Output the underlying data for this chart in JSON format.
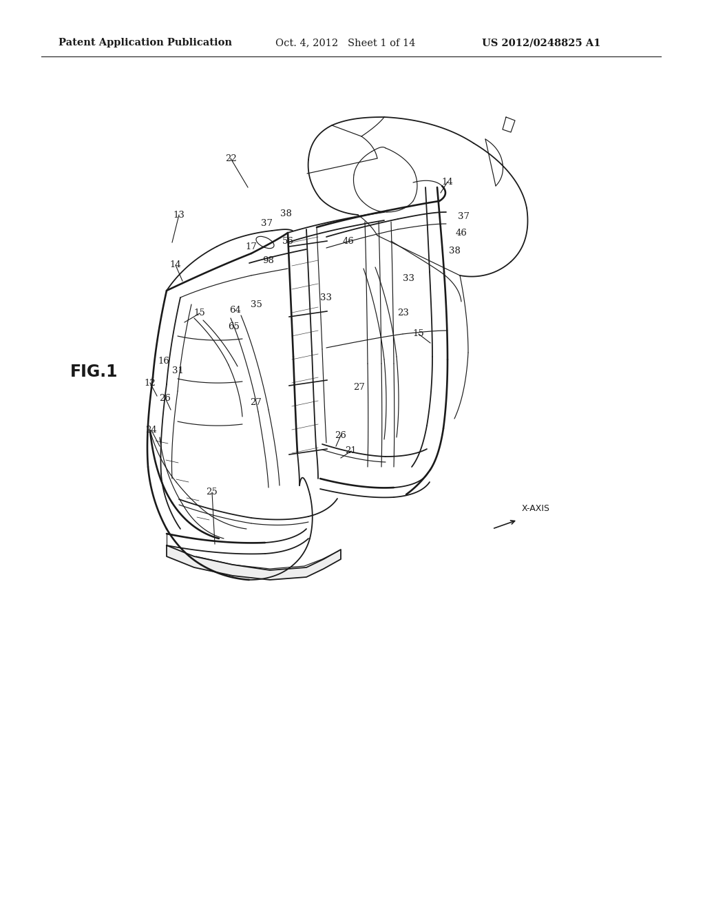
{
  "bg_color": "#ffffff",
  "header_left": "Patent Application Publication",
  "header_center": "Oct. 4, 2012   Sheet 1 of 14",
  "header_right": "US 2012/0248825 A1",
  "fig_label": "FIG.1",
  "line_color": "#1a1a1a",
  "header_font_size": 10.5,
  "fig_label_font_size": 17,
  "annotation_font_size": 9.5
}
